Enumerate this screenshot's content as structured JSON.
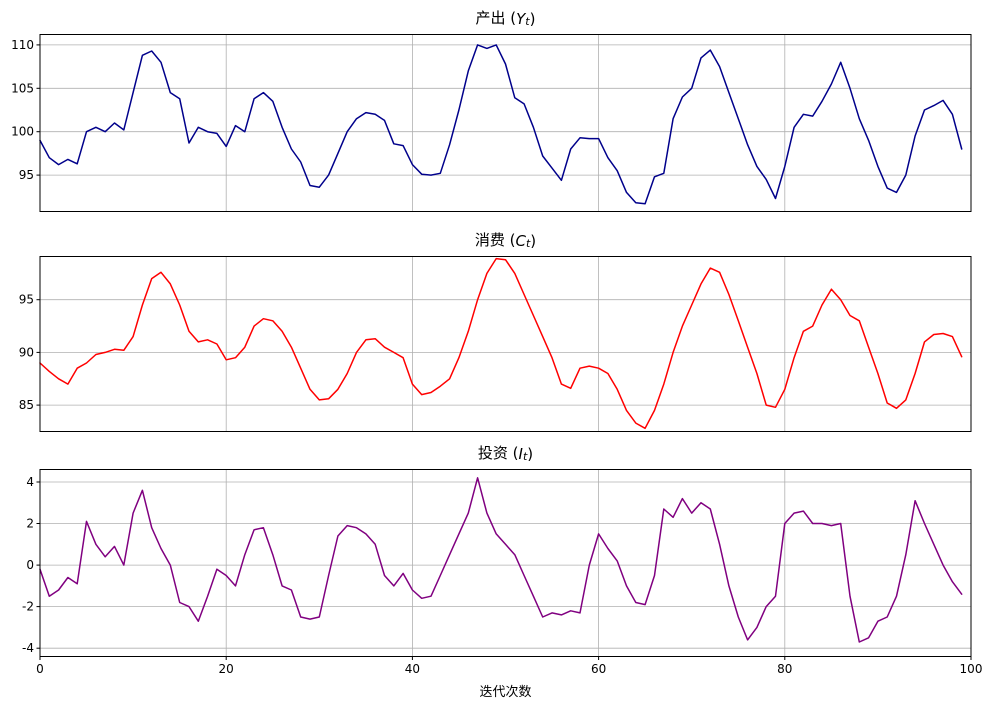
{
  "xlabel": "迭代次数",
  "chart_data": [
    {
      "type": "line",
      "title": {
        "prefix": "产出 (",
        "var": "Y",
        "sub": "t",
        "suffix": ")"
      },
      "title_text": "产出 (Yt)",
      "color": "#00008b",
      "grid_color": "#b0b0b0",
      "xlim": [
        0,
        100
      ],
      "ylim": [
        90.8,
        111.2
      ],
      "xticks": [
        0,
        20,
        40,
        60,
        80,
        100
      ],
      "yticks": [
        95,
        100,
        105,
        110
      ],
      "show_xtick_labels": false,
      "x_start": 0,
      "values": [
        99.0,
        97.0,
        96.2,
        96.8,
        96.3,
        100.0,
        100.5,
        100.0,
        101.0,
        100.2,
        104.5,
        108.8,
        109.3,
        108.0,
        104.5,
        103.8,
        98.7,
        100.5,
        100.0,
        99.8,
        98.3,
        100.7,
        100.0,
        103.8,
        104.5,
        103.5,
        100.5,
        98.0,
        96.5,
        93.8,
        93.6,
        95.0,
        97.5,
        100.0,
        101.5,
        102.2,
        102.0,
        101.3,
        98.6,
        98.4,
        96.2,
        95.1,
        95.0,
        95.2,
        98.5,
        102.5,
        107.0,
        110.0,
        109.6,
        110.0,
        107.8,
        103.9,
        103.2,
        100.5,
        97.2,
        95.8,
        94.4,
        98.0,
        99.3,
        99.2,
        99.2,
        97.0,
        95.5,
        93.0,
        91.8,
        91.7,
        94.8,
        95.2,
        101.5,
        104.0,
        105.0,
        108.5,
        109.4,
        107.5,
        104.5,
        101.5,
        98.5,
        96.0,
        94.5,
        92.3,
        96.0,
        100.5,
        102.0,
        101.8,
        103.5,
        105.5,
        108.0,
        105.0,
        101.5,
        99.0,
        96.0,
        93.5,
        93.0,
        95.0,
        99.5,
        102.5,
        103.0,
        103.6,
        102.0,
        98.0
      ]
    },
    {
      "type": "line",
      "title": {
        "prefix": "消费 (",
        "var": "C",
        "sub": "t",
        "suffix": ")"
      },
      "title_text": "消费 (Ct)",
      "color": "#ff0000",
      "grid_color": "#b0b0b0",
      "xlim": [
        0,
        100
      ],
      "ylim": [
        82.5,
        99.1
      ],
      "xticks": [
        0,
        20,
        40,
        60,
        80,
        100
      ],
      "yticks": [
        85,
        90,
        95
      ],
      "show_xtick_labels": false,
      "x_start": 0,
      "values": [
        89.0,
        88.2,
        87.5,
        87.0,
        88.5,
        89.0,
        89.8,
        90.0,
        90.3,
        90.2,
        91.5,
        94.5,
        97.0,
        97.6,
        96.5,
        94.5,
        92.0,
        91.0,
        91.2,
        90.8,
        89.3,
        89.5,
        90.5,
        92.5,
        93.2,
        93.0,
        92.0,
        90.5,
        88.5,
        86.5,
        85.5,
        85.6,
        86.5,
        88.0,
        90.0,
        91.2,
        91.3,
        90.5,
        90.0,
        89.5,
        87.0,
        86.0,
        86.2,
        86.8,
        87.5,
        89.5,
        92.0,
        95.0,
        97.5,
        98.9,
        98.8,
        97.5,
        95.5,
        93.5,
        91.5,
        89.5,
        87.0,
        86.6,
        88.5,
        88.7,
        88.5,
        88.0,
        86.5,
        84.5,
        83.3,
        82.8,
        84.5,
        87.0,
        90.0,
        92.5,
        94.5,
        96.5,
        98.0,
        97.6,
        95.5,
        93.0,
        90.5,
        88.0,
        85.0,
        84.8,
        86.5,
        89.5,
        92.0,
        92.5,
        94.5,
        96.0,
        95.0,
        93.5,
        93.0,
        90.5,
        88.0,
        85.2,
        84.7,
        85.5,
        88.0,
        91.0,
        91.7,
        91.8,
        91.5,
        89.6
      ]
    },
    {
      "type": "line",
      "title": {
        "prefix": "投资 (",
        "var": "I",
        "sub": "t",
        "suffix": ")"
      },
      "title_text": "投资 (It)",
      "color": "#800080",
      "grid_color": "#b0b0b0",
      "xlim": [
        0,
        100
      ],
      "ylim": [
        -4.4,
        4.6
      ],
      "xticks": [
        0,
        20,
        40,
        60,
        80,
        100
      ],
      "yticks": [
        -4,
        -2,
        0,
        2,
        4
      ],
      "show_xtick_labels": true,
      "x_start": 0,
      "values": [
        -0.2,
        -1.5,
        -1.2,
        -0.6,
        -0.9,
        2.1,
        1.0,
        0.4,
        0.9,
        0.0,
        2.5,
        3.6,
        1.8,
        0.8,
        0.0,
        -1.8,
        -2.0,
        -2.7,
        -1.5,
        -0.2,
        -0.5,
        -1.0,
        0.5,
        1.7,
        1.8,
        0.5,
        -1.0,
        -1.2,
        -2.5,
        -2.6,
        -2.5,
        -0.5,
        1.4,
        1.9,
        1.8,
        1.5,
        1.0,
        -0.5,
        -1.0,
        -0.4,
        -1.2,
        -1.6,
        -1.5,
        -0.5,
        0.5,
        1.5,
        2.5,
        4.2,
        2.5,
        1.5,
        1.0,
        0.5,
        -0.5,
        -1.5,
        -2.5,
        -2.3,
        -2.4,
        -2.2,
        -2.3,
        0.0,
        1.5,
        0.8,
        0.2,
        -1.0,
        -1.8,
        -1.9,
        -0.5,
        2.7,
        2.3,
        3.2,
        2.5,
        3.0,
        2.7,
        1.0,
        -1.0,
        -2.5,
        -3.6,
        -3.0,
        -2.0,
        -1.5,
        2.0,
        2.5,
        2.6,
        2.0,
        2.0,
        1.9,
        2.0,
        -1.5,
        -3.7,
        -3.5,
        -2.7,
        -2.5,
        -1.5,
        0.5,
        3.1,
        2.0,
        1.0,
        0.0,
        -0.8,
        -1.4
      ]
    }
  ]
}
